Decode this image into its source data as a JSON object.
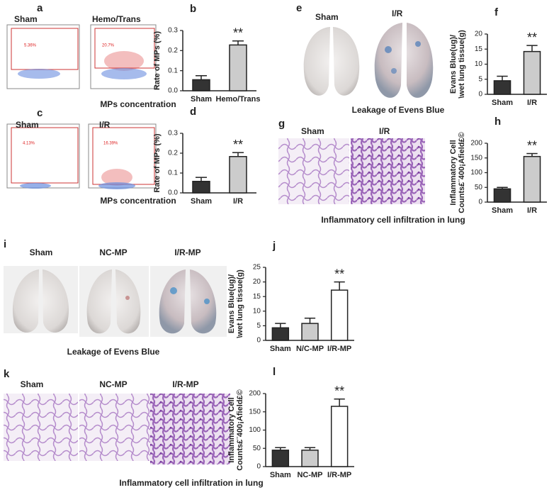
{
  "chart_data": [
    {
      "type": "bar",
      "letter": "b",
      "ylabel": [
        "Rate of MPs (%)"
      ],
      "categories": [
        "Sham",
        "Hemo/Trans"
      ],
      "values": [
        0.055,
        0.228
      ],
      "errors": [
        0.02,
        0.02
      ],
      "colors": [
        "#333333",
        "#cccccc"
      ],
      "ylim": [
        0,
        0.3
      ],
      "yticks": [
        {
          "value": 0,
          "label": "0.0"
        },
        0.1,
        0.2,
        0.3
      ],
      "annotations": [
        {
          "category": "Hemo/Trans",
          "text": "**"
        }
      ]
    },
    {
      "type": "bar",
      "letter": "d",
      "ylabel": [
        "Rate of MPs (%)"
      ],
      "categories": [
        "Sham",
        "I/R"
      ],
      "values": [
        0.058,
        0.183
      ],
      "errors": [
        0.02,
        0.02
      ],
      "colors": [
        "#333333",
        "#cccccc"
      ],
      "ylim": [
        0,
        0.3
      ],
      "yticks": [
        {
          "value": 0,
          "label": "0.0"
        },
        0.1,
        0.2,
        0.3
      ],
      "annotations": [
        {
          "category": "I/R",
          "text": "**"
        }
      ]
    },
    {
      "type": "bar",
      "letter": "f",
      "ylabel": [
        "Evans Blue(ug)/",
        "\\wet lung tissue(g)"
      ],
      "categories": [
        "Sham",
        "I/R"
      ],
      "values": [
        4.5,
        14.2
      ],
      "errors": [
        1.5,
        2
      ],
      "colors": [
        "#333333",
        "#cccccc"
      ],
      "ylim": [
        0,
        20
      ],
      "yticks": [
        0,
        5,
        10,
        15,
        20
      ],
      "annotations": [
        {
          "category": "I/R",
          "text": "**"
        }
      ]
    },
    {
      "type": "bar",
      "letter": "h",
      "ylabel": [
        "Inflammatory Cell",
        "Counts£¨400¡Afield£©"
      ],
      "categories": [
        "Sham",
        "I/R"
      ],
      "values": [
        45,
        155
      ],
      "errors": [
        5,
        10
      ],
      "colors": [
        "#333333",
        "#cccccc"
      ],
      "ylim": [
        0,
        200
      ],
      "yticks": [
        0,
        50,
        100,
        150,
        200
      ],
      "annotations": [
        {
          "category": "I/R",
          "text": "**"
        }
      ]
    },
    {
      "type": "bar",
      "letter": "j",
      "ylabel": [
        "Evans Blue(ug)/",
        "\\wet lung tissue(g)"
      ],
      "categories": [
        "Sham",
        "N/C-MP",
        "I/R-MP"
      ],
      "values": [
        4.3,
        5.8,
        17.2
      ],
      "errors": [
        1.5,
        1.8,
        2.8
      ],
      "colors": [
        "#333333",
        "#cccccc",
        "#ffffff"
      ],
      "ylim": [
        0,
        25
      ],
      "yticks": [
        0,
        5,
        10,
        15,
        20,
        25
      ],
      "annotations": [
        {
          "category": "I/R-MP",
          "text": "**"
        }
      ]
    },
    {
      "type": "bar",
      "letter": "l",
      "ylabel": [
        "Inflammatory Cell",
        "Counts£¨400¡Afield£©"
      ],
      "categories": [
        "Sham",
        "NC-MP",
        "I/R-MP"
      ],
      "values": [
        45,
        45,
        165
      ],
      "errors": [
        7,
        7,
        20
      ],
      "colors": [
        "#333333",
        "#cccccc",
        "#ffffff"
      ],
      "ylim": [
        0,
        200
      ],
      "yticks": [
        0,
        50,
        100,
        150,
        200
      ],
      "annotations": [
        {
          "category": "I/R-MP",
          "text": "**"
        }
      ]
    }
  ],
  "panels": {
    "a": {
      "letter": "a",
      "labels": [
        "Sham",
        "Hemo/Trans"
      ],
      "percents": [
        "5.36%",
        "20.7%"
      ],
      "caption": "MPs concentration"
    },
    "c": {
      "letter": "c",
      "labels": [
        "Sham",
        "I/R"
      ],
      "percents": [
        "4.13%",
        "16.39%"
      ],
      "caption": "MPs concentration"
    },
    "e": {
      "letter": "e",
      "labels": [
        "Sham",
        "I/R"
      ],
      "caption": "Leakage of Evens Blue"
    },
    "g": {
      "letter": "g",
      "labels": [
        "Sham",
        "I/R"
      ],
      "caption": "Inflammatory cell infiltration in lung"
    },
    "i": {
      "letter": "i",
      "labels": [
        "Sham",
        "NC-MP",
        "I/R-MP"
      ],
      "caption": "Leakage of Evens Blue"
    },
    "k": {
      "letter": "k",
      "labels": [
        "Sham",
        "NC-MP",
        "I/R-MP"
      ],
      "caption": "Inflammatory cell infiltration in lung"
    }
  }
}
